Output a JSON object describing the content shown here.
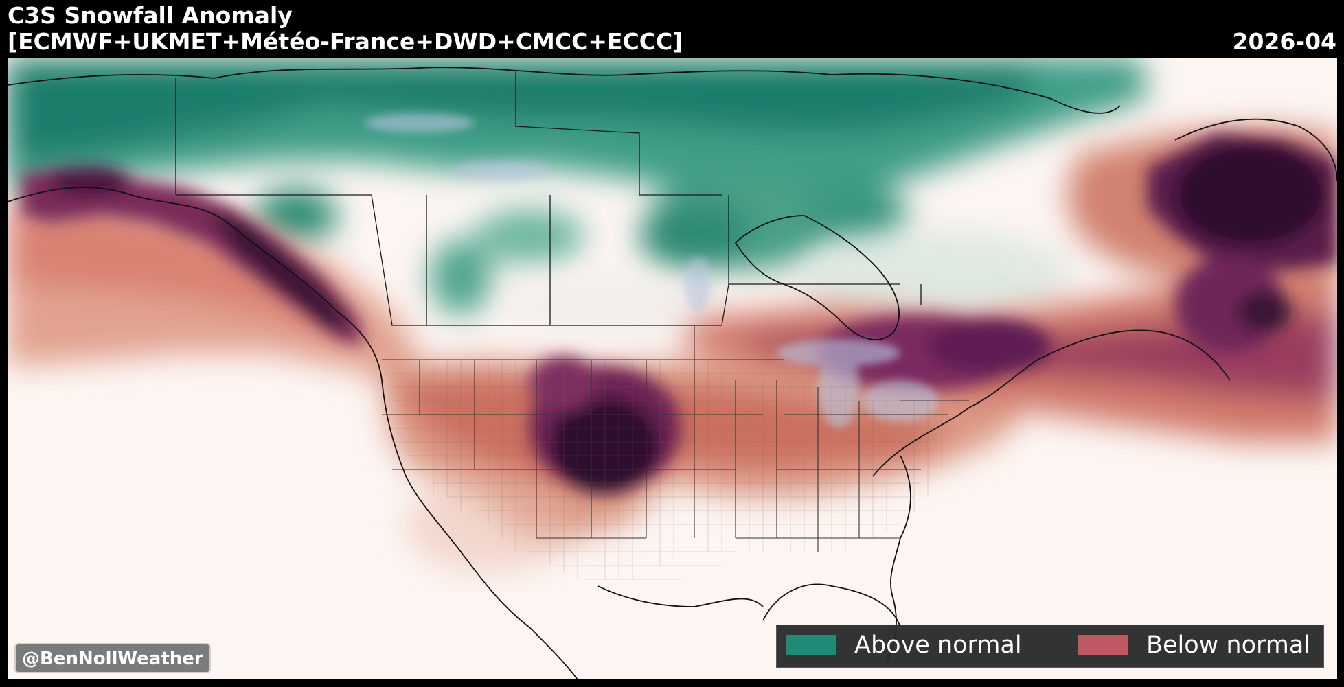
{
  "header": {
    "title": "C3S Snowfall Anomaly",
    "subtitle": "[ECMWF+UKMET+Météo-France+DWD+CMCC+ECCC]",
    "date": "2026-04"
  },
  "legend": {
    "items": [
      {
        "label": "Above normal",
        "color": "#1f8a76"
      },
      {
        "label": "Below normal",
        "color": "#c05763"
      }
    ]
  },
  "credit": "@BenNollWeather",
  "colors": {
    "background": "#000000",
    "neutral": "#fcf5f2",
    "above_normal": "#1f8a76",
    "below_normal": "#c05763",
    "extreme_below": "#2e0f2d"
  }
}
